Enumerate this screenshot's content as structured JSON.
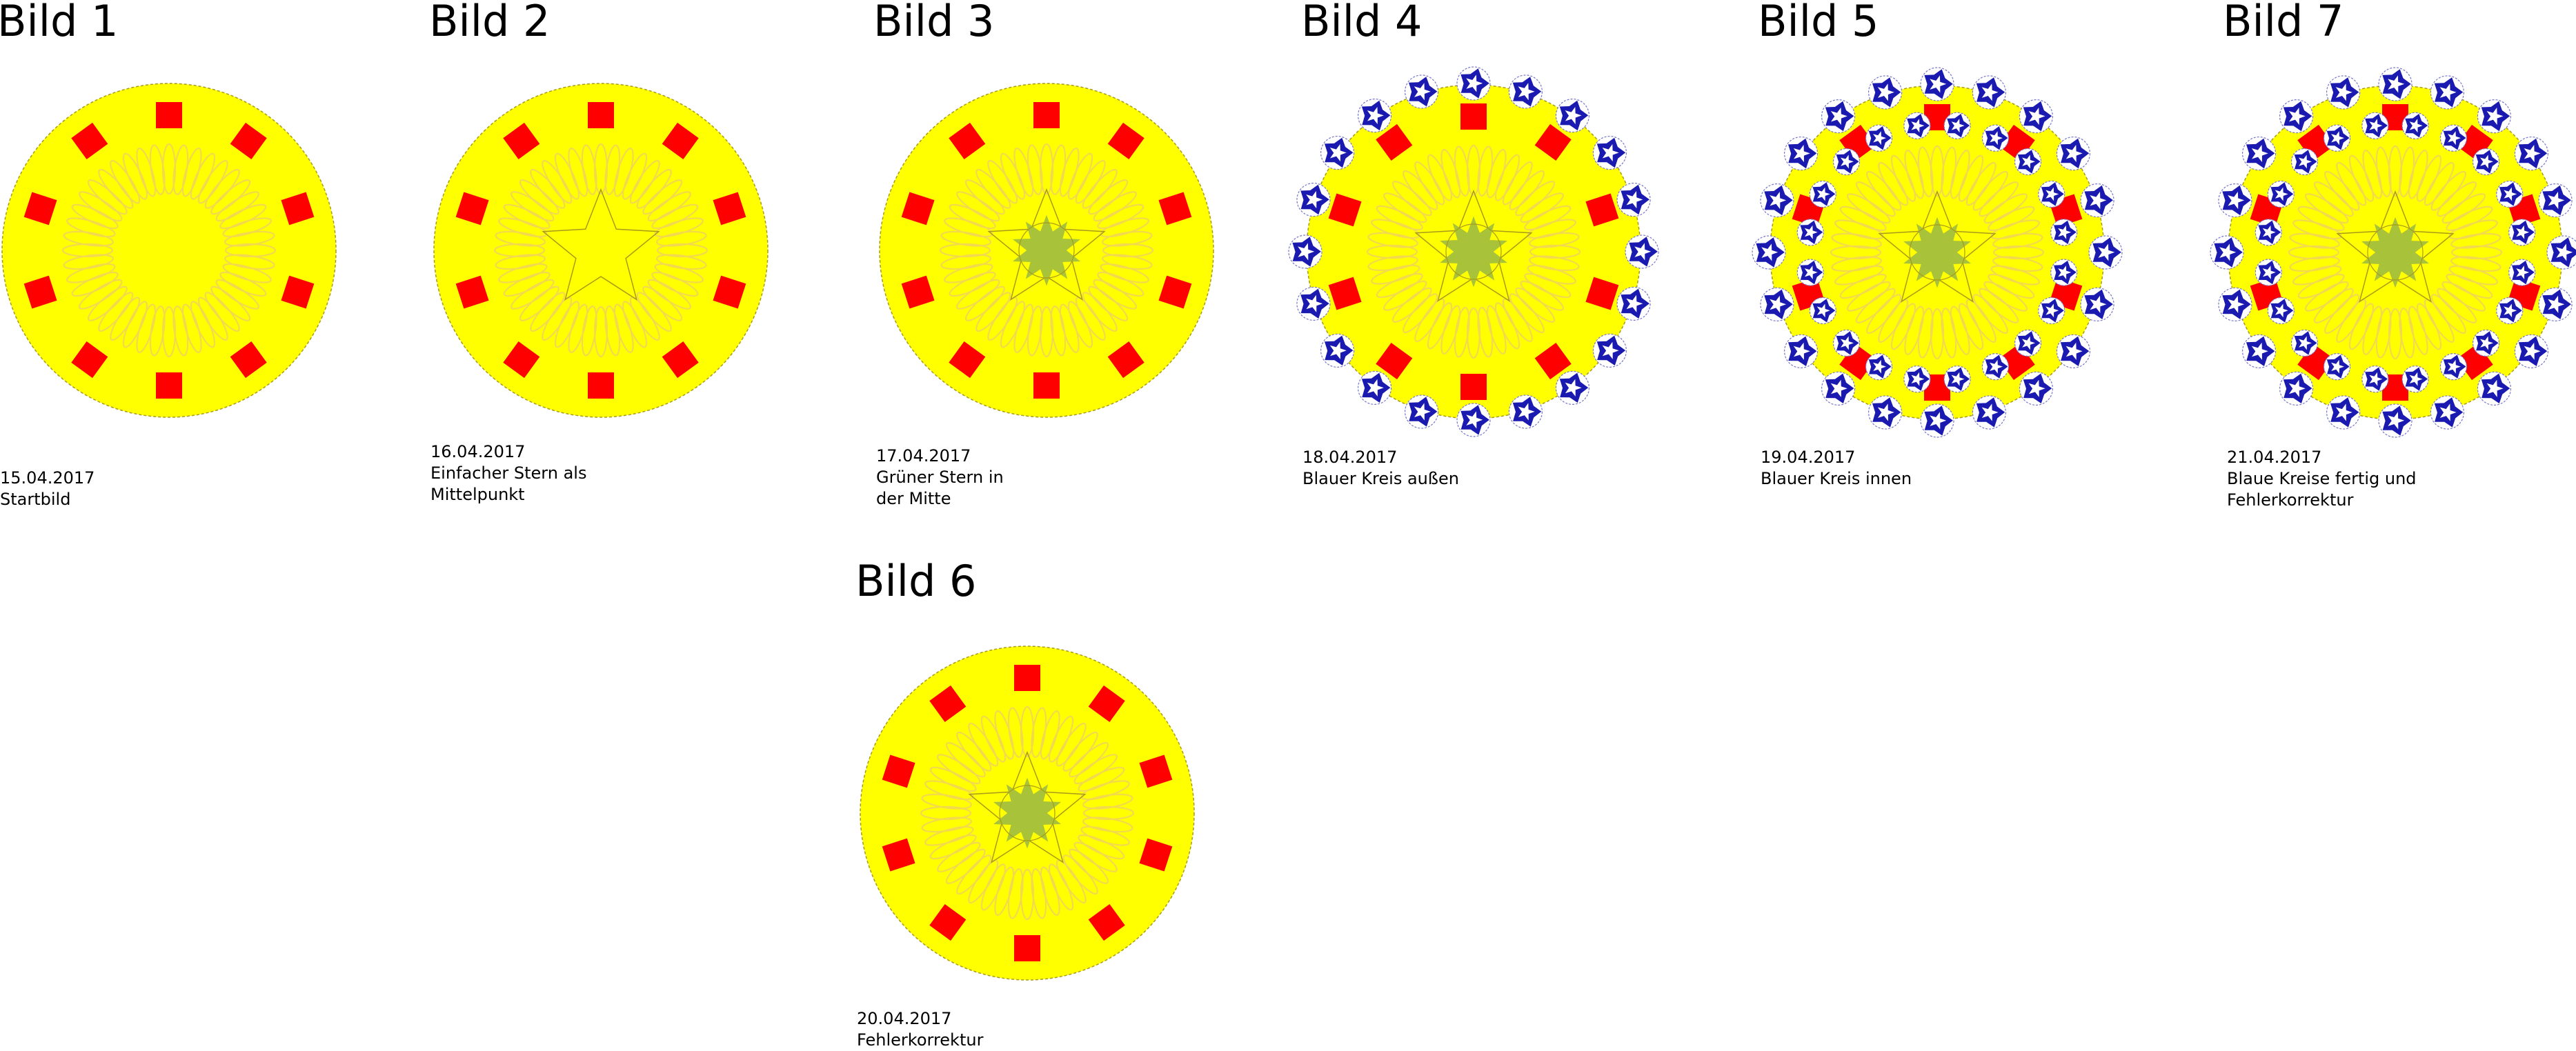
{
  "panels": [
    {
      "id": "bild-1",
      "title": "Bild 1",
      "date": "15.04.2017",
      "caption_lines": [
        "Startbild"
      ],
      "features": {
        "star": false,
        "green_center": false,
        "outer_blue": false,
        "inner_blue": false
      }
    },
    {
      "id": "bild-2",
      "title": "Bild 2",
      "date": "16.04.2017",
      "caption_lines": [
        "Einfacher Stern als",
        "Mittelpunkt"
      ],
      "features": {
        "star": true,
        "green_center": false,
        "outer_blue": false,
        "inner_blue": false
      }
    },
    {
      "id": "bild-3",
      "title": "Bild 3",
      "date": "17.04.2017",
      "caption_lines": [
        "Grüner Stern in",
        "der Mitte"
      ],
      "features": {
        "star": true,
        "green_center": true,
        "outer_blue": false,
        "inner_blue": false
      }
    },
    {
      "id": "bild-4",
      "title": "Bild 4",
      "date": "18.04.2017",
      "caption_lines": [
        "Blauer Kreis außen"
      ],
      "features": {
        "star": true,
        "green_center": true,
        "outer_blue": true,
        "inner_blue": false
      }
    },
    {
      "id": "bild-5",
      "title": "Bild 5",
      "date": "19.04.2017",
      "caption_lines": [
        "Blauer Kreis innen"
      ],
      "features": {
        "star": true,
        "green_center": true,
        "outer_blue": true,
        "inner_blue": true
      }
    },
    {
      "id": "bild-7",
      "title": "Bild 7",
      "date": "21.04.2017",
      "caption_lines": [
        "Blaue Kreise fertig und",
        "Fehlerkorrektur"
      ],
      "features": {
        "star": true,
        "green_center": true,
        "outer_blue": true,
        "inner_blue": true
      }
    },
    {
      "id": "bild-6",
      "title": "Bild 6",
      "date": "20.04.2017",
      "caption_lines": [
        "Fehlerkorrektur"
      ],
      "features": {
        "star": true,
        "green_center": true,
        "outer_blue": false,
        "inner_blue": false
      }
    }
  ],
  "colors": {
    "disc": "#ffff00",
    "petal": "#f2d94e",
    "square": "#ff0000",
    "green": "#a8c23a",
    "blue": "#1a1ab0",
    "outline": "#a89a1a"
  }
}
